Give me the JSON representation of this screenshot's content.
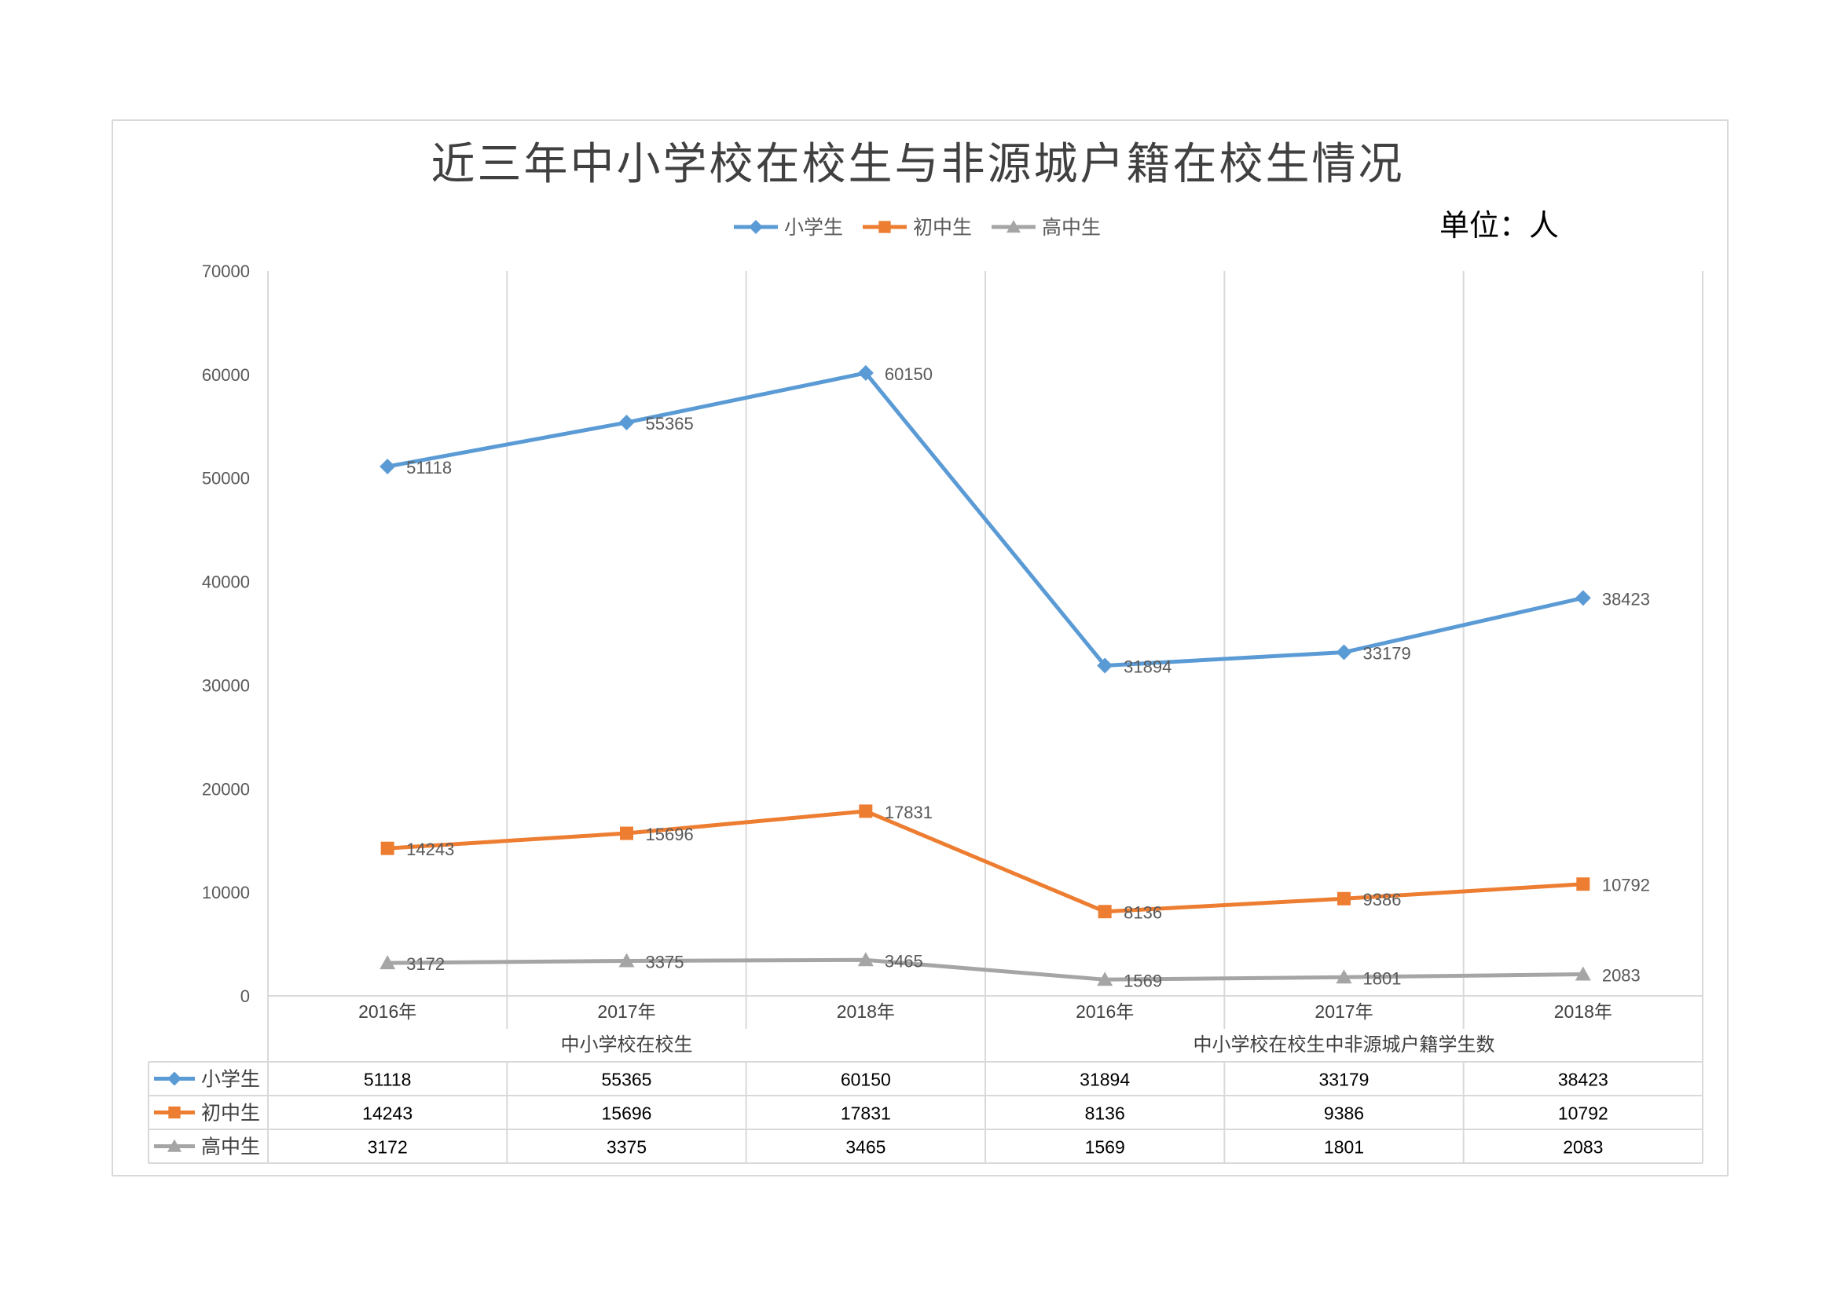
{
  "chart_data": {
    "type": "line",
    "title": "近三年中小学校在校生与非源城户籍在校生情况",
    "unit_note": "单位：人",
    "ylim": [
      0,
      70000
    ],
    "y_ticks": [
      "0",
      "10000",
      "20000",
      "30000",
      "40000",
      "50000",
      "60000",
      "70000"
    ],
    "y_tick_values": [
      0,
      10000,
      20000,
      30000,
      40000,
      50000,
      60000,
      70000
    ],
    "categories": [
      "2016年",
      "2017年",
      "2018年",
      "2016年",
      "2017年",
      "2018年"
    ],
    "groups": [
      {
        "label": "中小学校在校生",
        "span": [
          0,
          2
        ]
      },
      {
        "label": "中小学校在校生中非源城户籍学生数",
        "span": [
          3,
          5
        ]
      }
    ],
    "legend_position": "top",
    "grid": "vertical",
    "data_table": true,
    "series": [
      {
        "name": "小学生",
        "color": "#5b9bd5",
        "marker": "diamond",
        "values": [
          51118,
          55365,
          60150,
          31894,
          33179,
          38423
        ]
      },
      {
        "name": "初中生",
        "color": "#ed7d31",
        "marker": "square",
        "values": [
          14243,
          15696,
          17831,
          8136,
          9386,
          10792
        ]
      },
      {
        "name": "高中生",
        "color": "#a5a5a5",
        "marker": "triangle",
        "values": [
          3172,
          3375,
          3465,
          1569,
          1801,
          2083
        ]
      }
    ]
  }
}
